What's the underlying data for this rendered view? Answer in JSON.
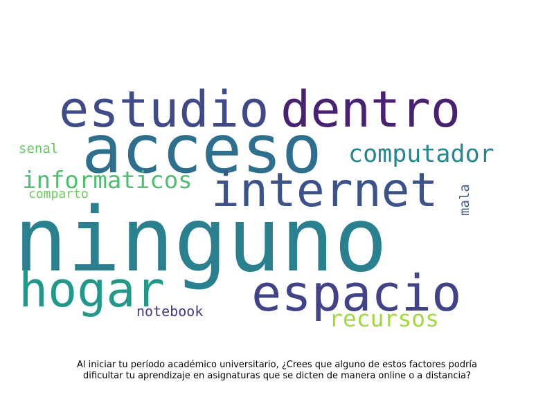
{
  "chart_data": {
    "type": "wordcloud",
    "title": "Al iniciar tu período académico universitario, ¿Crees que alguno de estos factores podría dificultar tu aprendizaje en asignaturas que se dicten de manera online o a distancia?",
    "words": [
      {
        "text": "ninguno",
        "color": "#29808e"
      },
      {
        "text": "acceso",
        "color": "#2d708e"
      },
      {
        "text": "estudio",
        "color": "#3e4a89"
      },
      {
        "text": "dentro",
        "color": "#482173"
      },
      {
        "text": "internet",
        "color": "#3b528b"
      },
      {
        "text": "espacio",
        "color": "#404387"
      },
      {
        "text": "hogar",
        "color": "#1f9a8a"
      },
      {
        "text": "computador",
        "color": "#24868e"
      },
      {
        "text": "informaticos",
        "color": "#4ac16d"
      },
      {
        "text": "recursos",
        "color": "#a0da39"
      },
      {
        "text": "notebook",
        "color": "#443983"
      },
      {
        "text": "senal",
        "color": "#5ec962"
      },
      {
        "text": "comparto",
        "color": "#6ccd5a"
      },
      {
        "text": "mala",
        "color": "#3e5f8d"
      }
    ]
  }
}
